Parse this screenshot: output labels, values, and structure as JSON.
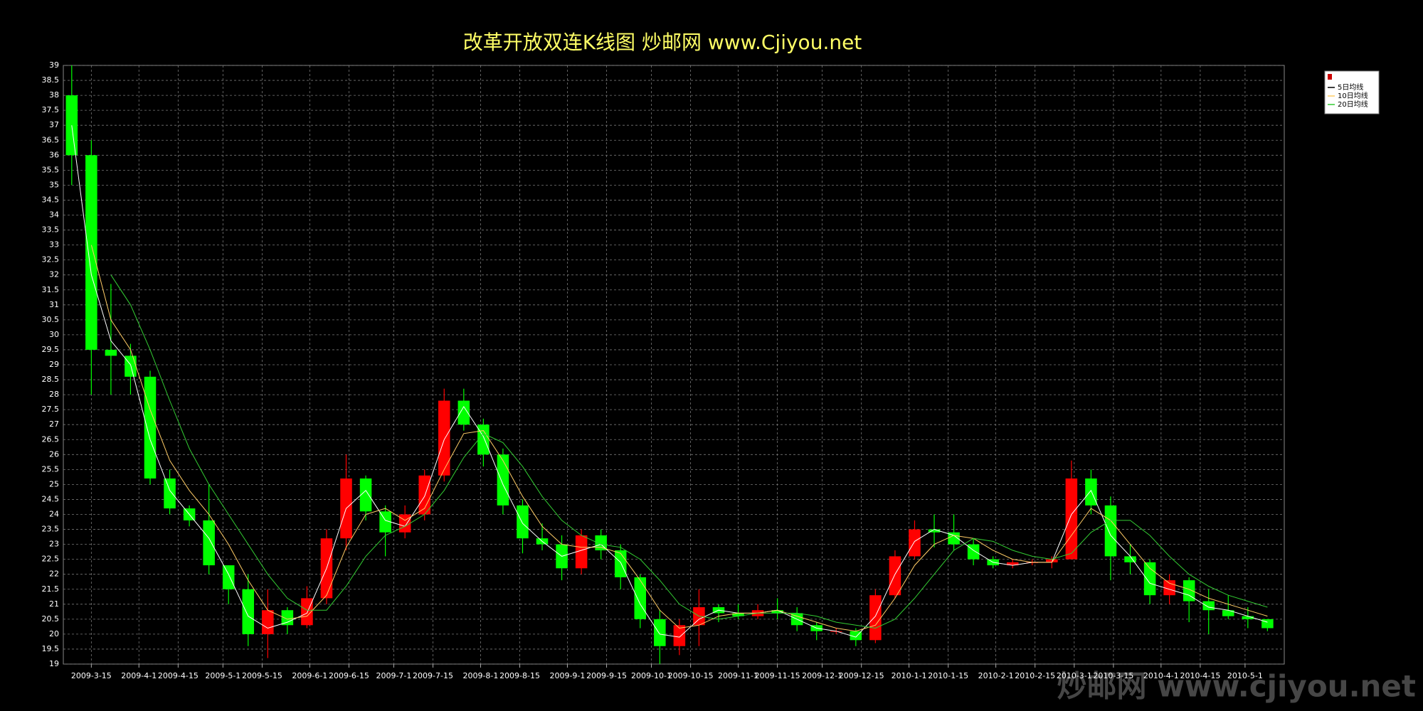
{
  "chart_data": {
    "type": "candlestick",
    "title": "改革开放双连K线图  炒邮网 www.Cjiyou.net",
    "watermark": "炒邮网 www.cjiyou.net",
    "up_color": "#ff0000",
    "down_color": "#00ff00",
    "grid": true,
    "x": [
      "2009-3-8",
      "2009-3-15",
      "2009-3-22",
      "2009-3-29",
      "2009-4-5",
      "2009-4-12",
      "2009-4-19",
      "2009-4-26",
      "2009-5-3",
      "2009-5-10",
      "2009-5-17",
      "2009-5-24",
      "2009-5-31",
      "2009-6-7",
      "2009-6-14",
      "2009-6-21",
      "2009-6-28",
      "2009-7-5",
      "2009-7-12",
      "2009-7-19",
      "2009-7-26",
      "2009-8-2",
      "2009-8-9",
      "2009-8-16",
      "2009-8-23",
      "2009-8-30",
      "2009-9-6",
      "2009-9-13",
      "2009-9-20",
      "2009-9-27",
      "2009-10-4",
      "2009-10-11",
      "2009-10-18",
      "2009-10-25",
      "2009-11-1",
      "2009-11-8",
      "2009-11-15",
      "2009-11-22",
      "2009-11-29",
      "2009-12-6",
      "2009-12-13",
      "2009-12-20",
      "2009-12-27",
      "2010-1-3",
      "2010-1-10",
      "2010-1-17",
      "2010-1-24",
      "2010-1-31",
      "2010-2-7",
      "2010-2-14",
      "2010-2-21",
      "2010-2-28",
      "2010-3-7",
      "2010-3-14",
      "2010-3-21",
      "2010-3-28",
      "2010-4-4",
      "2010-4-11",
      "2010-4-18",
      "2010-4-25",
      "2010-5-2",
      "2010-5-9"
    ],
    "open": [
      38,
      36,
      29.5,
      29.3,
      28.6,
      25.2,
      24.2,
      23.8,
      22.3,
      21.5,
      20,
      20.8,
      20.3,
      21.2,
      23.2,
      25.2,
      24.1,
      23.4,
      24,
      25.3,
      27.8,
      27,
      26,
      24.3,
      23.2,
      23,
      22.2,
      23.3,
      22.8,
      21.9,
      20.5,
      19.6,
      20.3,
      20.9,
      20.7,
      20.6,
      20.8,
      20.7,
      20.3,
      20.1,
      20.1,
      19.8,
      21.3,
      22.6,
      23.5,
      23.4,
      23,
      22.5,
      22.3,
      22.4,
      22.4,
      22.5,
      25.2,
      24.3,
      22.6,
      22.4,
      21.3,
      21.8,
      21.1,
      20.8,
      20.6,
      20.5
    ],
    "high": [
      39,
      36.5,
      31.7,
      29.7,
      28.8,
      25.5,
      24.3,
      25,
      22.3,
      22,
      21.5,
      20.9,
      21.6,
      23.5,
      26,
      25.3,
      24.3,
      24.3,
      25.5,
      28.2,
      28.2,
      27.2,
      26.2,
      24.5,
      23.7,
      23.3,
      23.5,
      23.5,
      23,
      22,
      20.8,
      20.5,
      21.5,
      21,
      21,
      21,
      21.2,
      20.9,
      20.4,
      20.2,
      20.2,
      21.5,
      22.8,
      23.8,
      24,
      24,
      23.2,
      22.6,
      22.5,
      22.5,
      22.6,
      25.8,
      25.5,
      24.6,
      23,
      22.5,
      22,
      21.9,
      21.5,
      21.3,
      20.9,
      20.5
    ],
    "low": [
      35,
      28,
      28,
      28,
      25,
      24,
      23.6,
      22,
      21,
      19.6,
      19.2,
      20,
      20.2,
      21,
      22.8,
      23.8,
      22.6,
      23.2,
      23.8,
      25.1,
      26.8,
      25.6,
      24,
      22.7,
      22.8,
      21.8,
      22,
      22.5,
      21.5,
      20.2,
      19,
      19.3,
      19.6,
      20.4,
      20.5,
      20.5,
      20.5,
      20.1,
      19.8,
      20,
      19.6,
      19.7,
      21.2,
      22.5,
      22.9,
      22.8,
      22.3,
      22.2,
      22.2,
      22.3,
      22.2,
      22.5,
      24,
      21.8,
      22,
      21,
      21,
      20.4,
      20,
      20.5,
      20.2,
      20.1
    ],
    "close": [
      36,
      29.5,
      29.3,
      28.6,
      25.2,
      24.2,
      23.8,
      22.3,
      21.5,
      20,
      20.8,
      20.3,
      21.2,
      23.2,
      25.2,
      24.1,
      23.4,
      24,
      25.3,
      27.8,
      27,
      26,
      24.3,
      23.2,
      23,
      22.2,
      23.3,
      22.8,
      21.9,
      20.5,
      19.6,
      20.3,
      20.9,
      20.7,
      20.6,
      20.8,
      20.7,
      20.3,
      20.1,
      20.1,
      19.8,
      21.3,
      22.6,
      23.5,
      23.4,
      23,
      22.5,
      22.3,
      22.4,
      22.4,
      22.5,
      25.2,
      24.3,
      22.6,
      22.4,
      21.3,
      21.8,
      21.1,
      20.8,
      20.6,
      20.5,
      20.2
    ],
    "series": [
      {
        "name": "5日均线",
        "color": "#ffffff",
        "values": [
          37,
          32,
          29.8,
          29,
          26.5,
          24.8,
          24,
          23.2,
          22,
          20.6,
          20.2,
          20.4,
          20.7,
          22.2,
          24.2,
          24.8,
          23.8,
          23.6,
          24.6,
          26.5,
          27.6,
          26.6,
          25,
          23.7,
          23.1,
          22.6,
          22.8,
          23,
          22.4,
          21,
          20,
          19.9,
          20.5,
          20.8,
          20.7,
          20.7,
          20.8,
          20.5,
          20.2,
          20.1,
          19.9,
          20.6,
          22,
          23.1,
          23.5,
          23.3,
          22.8,
          22.4,
          22.3,
          22.4,
          22.4,
          24,
          24.8,
          23.3,
          22.6,
          21.7,
          21.5,
          21.3,
          20.9,
          20.8,
          20.6,
          20.4
        ]
      },
      {
        "name": "10日均线",
        "color": "#ffcc66",
        "values": [
          null,
          33,
          30.5,
          29.5,
          27.5,
          25.8,
          24.8,
          24,
          23,
          21.8,
          20.8,
          20.5,
          20.6,
          21.3,
          22.9,
          24,
          24.2,
          23.8,
          24.2,
          25.5,
          26.7,
          26.8,
          25.8,
          24.6,
          23.6,
          23,
          22.9,
          22.9,
          22.7,
          21.8,
          20.8,
          20.2,
          20.3,
          20.6,
          20.7,
          20.7,
          20.8,
          20.6,
          20.4,
          20.2,
          20.1,
          20.3,
          21.2,
          22.3,
          23,
          23.3,
          23.2,
          22.8,
          22.5,
          22.4,
          22.4,
          23.3,
          24.2,
          23.8,
          23,
          22.2,
          21.7,
          21.5,
          21.2,
          21,
          20.8,
          20.6
        ]
      },
      {
        "name": "20日均线",
        "color": "#33cc33",
        "values": [
          null,
          null,
          32,
          31,
          29.5,
          27.8,
          26.2,
          25,
          24,
          23,
          22,
          21.2,
          20.8,
          20.8,
          21.6,
          22.6,
          23.3,
          23.6,
          24,
          24.8,
          25.9,
          26.7,
          26.4,
          25.6,
          24.6,
          23.8,
          23.3,
          23,
          22.9,
          22.5,
          21.8,
          21,
          20.6,
          20.5,
          20.6,
          20.7,
          20.7,
          20.7,
          20.6,
          20.4,
          20.3,
          20.2,
          20.5,
          21.2,
          22,
          22.8,
          23.2,
          23.1,
          22.8,
          22.6,
          22.5,
          22.7,
          23.4,
          23.8,
          23.8,
          23.3,
          22.6,
          22,
          21.6,
          21.3,
          21.1,
          20.9
        ]
      }
    ],
    "xlim": [
      "2009-3-5",
      "2010-5-15"
    ],
    "xticks": [
      "2009-3-15",
      "2009-4-1",
      "2009-4-15",
      "2009-5-1",
      "2009-5-15",
      "2009-6-1",
      "2009-6-15",
      "2009-7-1",
      "2009-7-15",
      "2009-8-1",
      "2009-8-15",
      "2009-9-1",
      "2009-9-15",
      "2009-10-1",
      "2009-10-15",
      "2009-11-1",
      "2009-11-15",
      "2009-12-1",
      "2009-12-15",
      "2010-1-1",
      "2010-1-15",
      "2010-2-1",
      "2010-2-15",
      "2010-3-1",
      "2010-3-15",
      "2010-4-1",
      "2010-4-15",
      "2010-5-1"
    ],
    "ylim": [
      19,
      39
    ],
    "yticks": [
      19,
      19.5,
      20,
      20.5,
      21,
      21.5,
      22,
      22.5,
      23,
      23.5,
      24,
      24.5,
      25,
      25.5,
      26,
      26.5,
      27,
      27.5,
      28,
      28.5,
      29,
      29.5,
      30,
      30.5,
      31,
      31.5,
      32,
      32.5,
      33,
      33.5,
      34,
      34.5,
      35,
      35.5,
      36,
      36.5,
      37,
      37.5,
      38,
      38.5,
      39
    ]
  }
}
